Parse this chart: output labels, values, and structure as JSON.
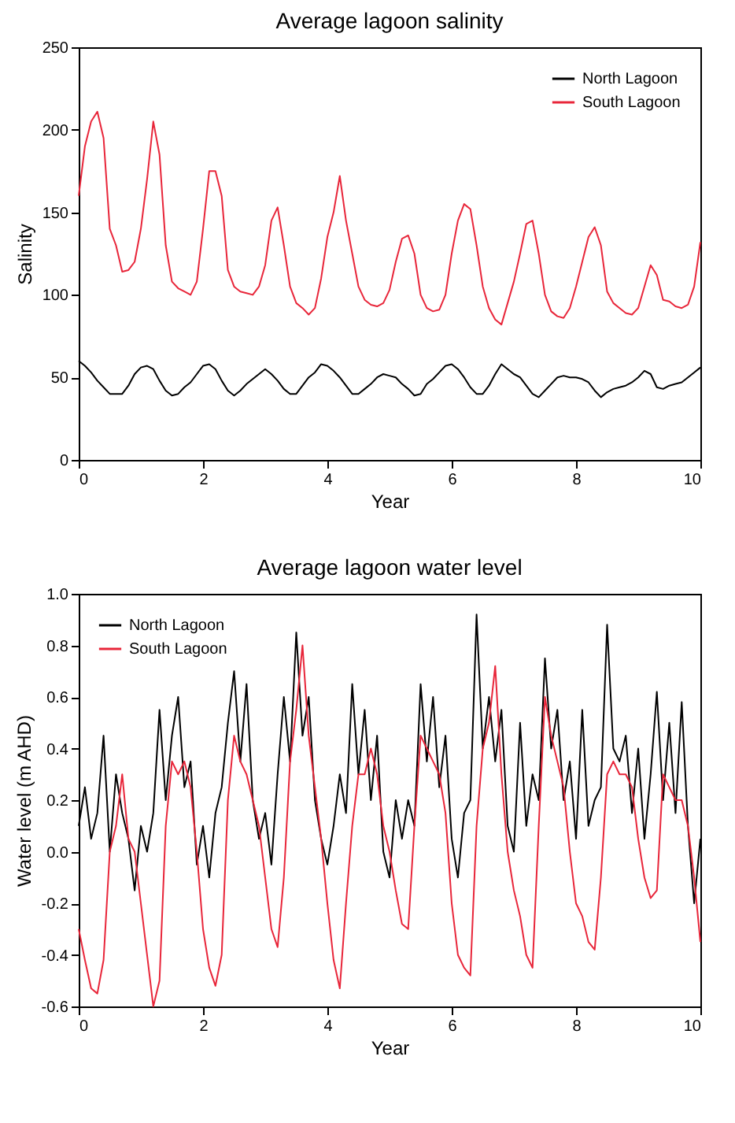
{
  "chart_data": [
    {
      "type": "line",
      "title": "Average lagoon salinity",
      "xlabel": "Year",
      "ylabel": "Salinity",
      "xlim": [
        0,
        10
      ],
      "xticks": [
        0,
        2,
        4,
        6,
        8,
        10
      ],
      "ylim": [
        0,
        250
      ],
      "yticks": [
        0,
        50,
        100,
        150,
        200,
        250
      ],
      "legend": "top right",
      "grid": false,
      "marker": "none",
      "line_style": "solid",
      "x": [
        0,
        0.1,
        0.2,
        0.3,
        0.4,
        0.5,
        0.6,
        0.7,
        0.8,
        0.9,
        1,
        1.1,
        1.2,
        1.3,
        1.4,
        1.5,
        1.6,
        1.7,
        1.8,
        1.9,
        2,
        2.1,
        2.2,
        2.3,
        2.4,
        2.5,
        2.6,
        2.7,
        2.8,
        2.9,
        3,
        3.1,
        3.2,
        3.3,
        3.4,
        3.5,
        3.6,
        3.7,
        3.8,
        3.9,
        4,
        4.1,
        4.2,
        4.3,
        4.4,
        4.5,
        4.6,
        4.7,
        4.8,
        4.9,
        5,
        5.1,
        5.2,
        5.3,
        5.4,
        5.5,
        5.6,
        5.7,
        5.8,
        5.9,
        6,
        6.1,
        6.2,
        6.3,
        6.4,
        6.5,
        6.6,
        6.7,
        6.8,
        6.9,
        7,
        7.1,
        7.2,
        7.3,
        7.4,
        7.5,
        7.6,
        7.7,
        7.8,
        7.9,
        8,
        8.1,
        8.2,
        8.3,
        8.4,
        8.5,
        8.6,
        8.7,
        8.8,
        8.9,
        9,
        9.1,
        9.2,
        9.3,
        9.4,
        9.5,
        9.6,
        9.7,
        9.8,
        9.9,
        10
      ],
      "series": [
        {
          "name": "North Lagoon",
          "color": "#000000",
          "values": [
            60,
            57,
            53,
            48,
            44,
            40,
            40,
            40,
            45,
            52,
            56,
            57,
            55,
            48,
            42,
            39,
            40,
            44,
            47,
            52,
            57,
            58,
            55,
            48,
            42,
            39,
            42,
            46,
            49,
            52,
            55,
            52,
            48,
            43,
            40,
            40,
            45,
            50,
            53,
            58,
            57,
            54,
            50,
            45,
            40,
            40,
            43,
            46,
            50,
            52,
            51,
            50,
            46,
            43,
            39,
            40,
            46,
            49,
            53,
            57,
            58,
            55,
            50,
            44,
            40,
            40,
            45,
            52,
            58,
            55,
            52,
            50,
            45,
            40,
            38,
            42,
            46,
            50,
            51,
            50,
            50,
            49,
            47,
            42,
            38,
            41,
            43,
            44,
            45,
            47,
            50,
            54,
            52,
            44,
            43,
            45,
            46,
            47,
            50,
            53,
            56
          ]
        },
        {
          "name": "South Lagoon",
          "color": "#e8263a",
          "values": [
            160,
            190,
            205,
            211,
            195,
            140,
            130,
            114,
            115,
            120,
            140,
            170,
            205,
            185,
            130,
            108,
            104,
            102,
            100,
            108,
            140,
            175,
            175,
            160,
            115,
            105,
            102,
            101,
            100,
            105,
            118,
            145,
            153,
            130,
            105,
            95,
            92,
            88,
            92,
            110,
            135,
            150,
            172,
            145,
            125,
            105,
            97,
            94,
            93,
            95,
            103,
            120,
            134,
            136,
            125,
            100,
            92,
            90,
            91,
            100,
            125,
            145,
            155,
            152,
            130,
            105,
            92,
            85,
            82,
            95,
            108,
            125,
            143,
            145,
            125,
            100,
            90,
            87,
            86,
            92,
            105,
            120,
            135,
            141,
            130,
            102,
            95,
            92,
            89,
            88,
            92,
            105,
            118,
            112,
            97,
            96,
            93,
            92,
            94,
            105,
            132
          ]
        }
      ]
    },
    {
      "type": "line",
      "title": "Average lagoon water level",
      "xlabel": "Year",
      "ylabel": "Water level (m AHD)",
      "xlim": [
        0,
        10
      ],
      "xticks": [
        0,
        2,
        4,
        6,
        8,
        10
      ],
      "ylim": [
        -0.6,
        1
      ],
      "yticks": [
        -0.6,
        -0.4,
        -0.2,
        {
          "value": 0,
          "label": "0.0"
        },
        0.2,
        0.4,
        0.6,
        0.8,
        {
          "value": 1,
          "label": "1.0"
        }
      ],
      "legend": "top left",
      "grid": false,
      "marker": "none",
      "line_style": "solid",
      "x": [
        0,
        0.1,
        0.2,
        0.3,
        0.4,
        0.5,
        0.6,
        0.7,
        0.8,
        0.9,
        1,
        1.1,
        1.2,
        1.3,
        1.4,
        1.5,
        1.6,
        1.7,
        1.8,
        1.9,
        2,
        2.1,
        2.2,
        2.3,
        2.4,
        2.5,
        2.6,
        2.7,
        2.8,
        2.9,
        3,
        3.1,
        3.2,
        3.3,
        3.4,
        3.5,
        3.6,
        3.7,
        3.8,
        3.9,
        4,
        4.1,
        4.2,
        4.3,
        4.4,
        4.5,
        4.6,
        4.7,
        4.8,
        4.9,
        5,
        5.1,
        5.2,
        5.3,
        5.4,
        5.5,
        5.6,
        5.7,
        5.8,
        5.9,
        6,
        6.1,
        6.2,
        6.3,
        6.4,
        6.5,
        6.6,
        6.7,
        6.8,
        6.9,
        7,
        7.1,
        7.2,
        7.3,
        7.4,
        7.5,
        7.6,
        7.7,
        7.8,
        7.9,
        8,
        8.1,
        8.2,
        8.3,
        8.4,
        8.5,
        8.6,
        8.7,
        8.8,
        8.9,
        9,
        9.1,
        9.2,
        9.3,
        9.4,
        9.5,
        9.6,
        9.7,
        9.8,
        9.9,
        10
      ],
      "series": [
        {
          "name": "North Lagoon",
          "color": "#000000",
          "values": [
            0.1,
            0.25,
            0.05,
            0.15,
            0.45,
            0,
            0.3,
            0.15,
            0.05,
            -0.15,
            0.1,
            0,
            0.15,
            0.55,
            0.2,
            0.45,
            0.6,
            0.25,
            0.35,
            -0.05,
            0.1,
            -0.1,
            0.15,
            0.25,
            0.5,
            0.7,
            0.35,
            0.65,
            0.2,
            0.05,
            0.15,
            -0.05,
            0.3,
            0.6,
            0.35,
            0.85,
            0.45,
            0.6,
            0.2,
            0.05,
            -0.05,
            0.1,
            0.3,
            0.15,
            0.65,
            0.3,
            0.55,
            0.2,
            0.45,
            0,
            -0.1,
            0.2,
            0.05,
            0.2,
            0.1,
            0.65,
            0.35,
            0.6,
            0.25,
            0.45,
            0.05,
            -0.1,
            0.15,
            0.2,
            0.92,
            0.4,
            0.6,
            0.35,
            0.55,
            0.1,
            0,
            0.5,
            0.1,
            0.3,
            0.2,
            0.75,
            0.4,
            0.55,
            0.2,
            0.35,
            0.05,
            0.55,
            0.1,
            0.2,
            0.25,
            0.88,
            0.4,
            0.35,
            0.45,
            0.15,
            0.4,
            0.05,
            0.3,
            0.62,
            0.2,
            0.5,
            0.15,
            0.58,
            0.1,
            -0.2,
            0.05
          ]
        },
        {
          "name": "South Lagoon",
          "color": "#e8263a",
          "values": [
            -0.3,
            -0.42,
            -0.53,
            -0.55,
            -0.42,
            0,
            0.1,
            0.3,
            0.05,
            0,
            -0.2,
            -0.4,
            -0.6,
            -0.5,
            0.1,
            0.35,
            0.3,
            0.35,
            0.25,
            0,
            -0.3,
            -0.45,
            -0.52,
            -0.4,
            0.2,
            0.45,
            0.35,
            0.3,
            0.2,
            0.1,
            -0.1,
            -0.3,
            -0.37,
            -0.1,
            0.35,
            0.55,
            0.8,
            0.45,
            0.25,
            0.05,
            -0.2,
            -0.42,
            -0.53,
            -0.2,
            0.1,
            0.3,
            0.3,
            0.4,
            0.3,
            0.1,
            0,
            -0.15,
            -0.28,
            -0.3,
            0.1,
            0.45,
            0.4,
            0.35,
            0.3,
            0.15,
            -0.2,
            -0.4,
            -0.45,
            -0.48,
            0.1,
            0.4,
            0.5,
            0.72,
            0.3,
            0,
            -0.15,
            -0.25,
            -0.4,
            -0.45,
            0.1,
            0.6,
            0.45,
            0.35,
            0.25,
            0,
            -0.2,
            -0.25,
            -0.35,
            -0.38,
            -0.1,
            0.3,
            0.35,
            0.3,
            0.3,
            0.25,
            0.05,
            -0.1,
            -0.18,
            -0.15,
            0.3,
            0.25,
            0.2,
            0.2,
            0.1,
            -0.1,
            -0.35
          ]
        }
      ]
    }
  ]
}
